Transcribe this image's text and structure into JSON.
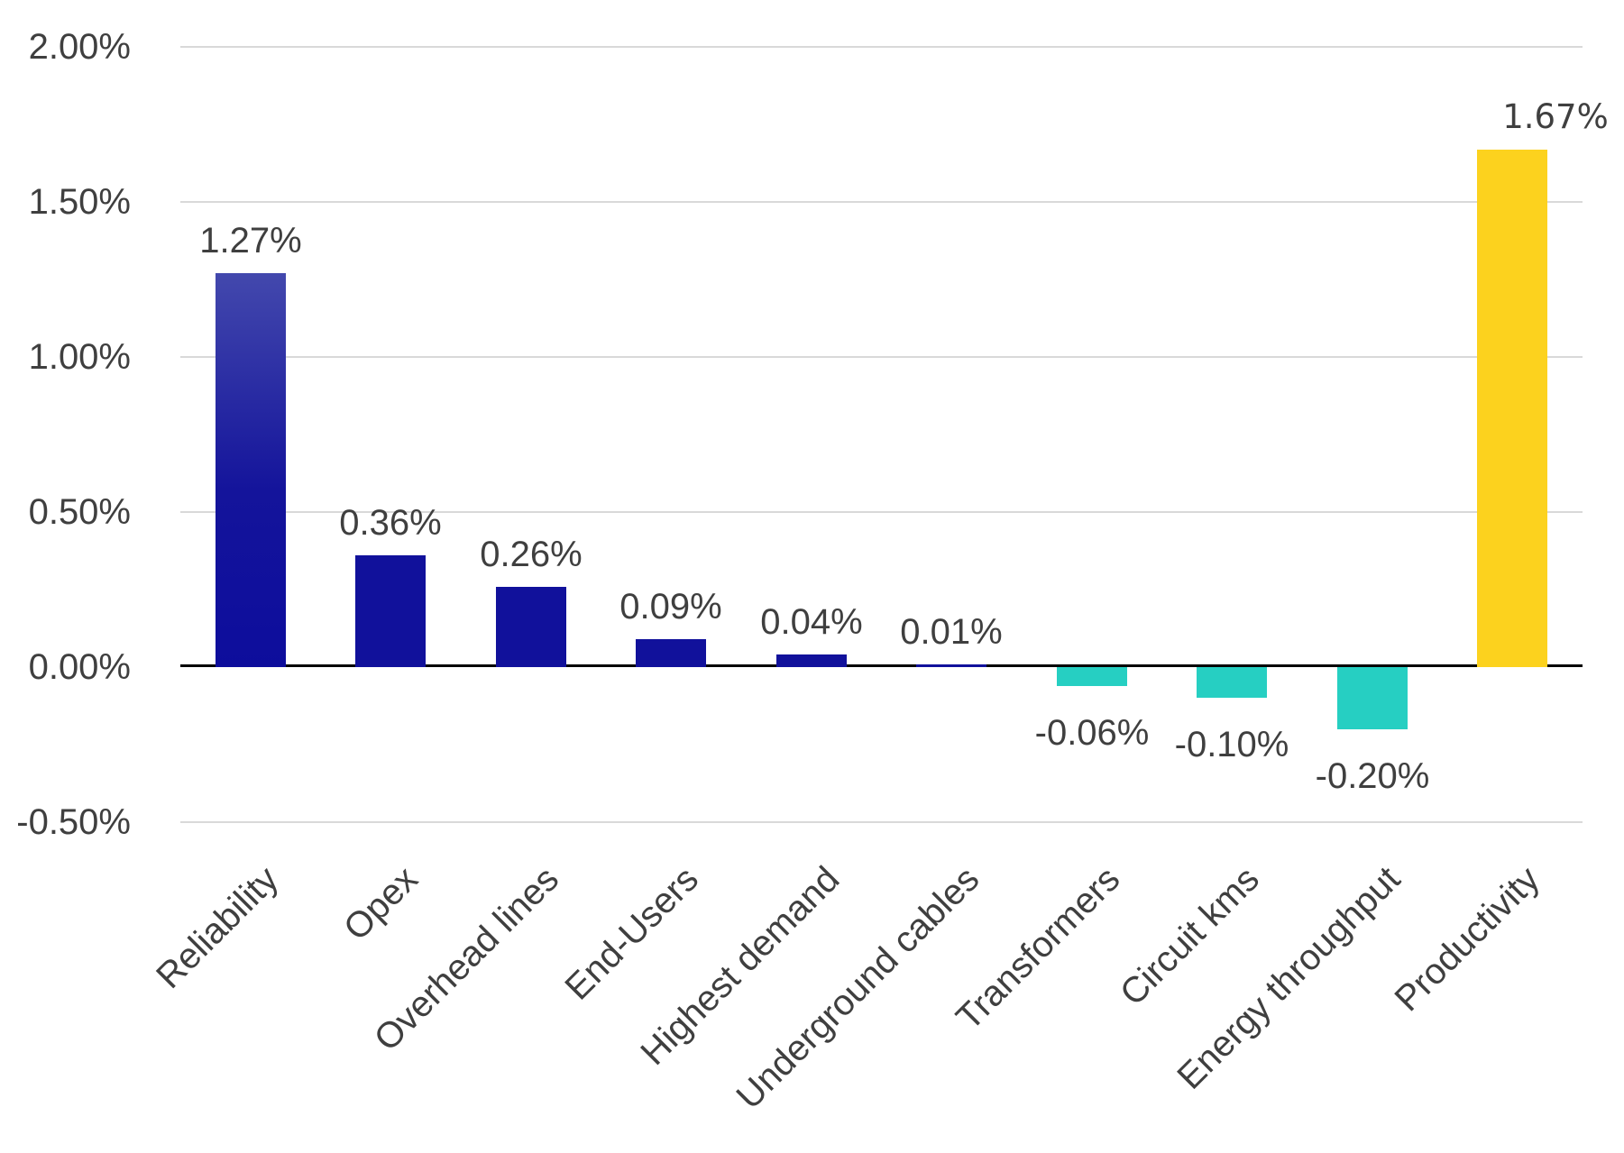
{
  "chart_data": {
    "type": "bar",
    "title": "",
    "xlabel": "",
    "ylabel": "",
    "categories": [
      "Reliability",
      "Opex",
      "Overhead lines",
      "End-Users",
      "Highest demand",
      "Underground cables",
      "Transformers",
      "Circuit kms",
      "Energy throughput",
      "Productivity"
    ],
    "values": [
      1.27,
      0.36,
      0.26,
      0.09,
      0.04,
      0.01,
      -0.06,
      -0.1,
      -0.2,
      1.67
    ],
    "value_labels": [
      "1.27%",
      "0.36%",
      "0.26%",
      "0.09%",
      "0.04%",
      "0.01%",
      "-0.06%",
      "-0.10%",
      "-0.20%",
      "1.67%"
    ],
    "bar_styles": [
      "blue-gradient",
      "blue",
      "blue",
      "blue",
      "blue",
      "blue",
      "teal",
      "teal",
      "teal",
      "yellow"
    ],
    "label_x_offsets": [
      0,
      0,
      0,
      0,
      0,
      0,
      0,
      0,
      0,
      48
    ],
    "label_alt_font": [
      false,
      false,
      false,
      false,
      false,
      false,
      false,
      false,
      false,
      true
    ],
    "y_tick_labels": [
      "2.00%",
      "1.50%",
      "1.00%",
      "0.50%",
      "0.00%",
      "-0.50%"
    ],
    "y_tick_values": [
      2.0,
      1.5,
      1.0,
      0.5,
      0.0,
      -0.5
    ],
    "ylim": [
      -0.5,
      2.0
    ],
    "grid": true,
    "legend_position": "none",
    "colors": {
      "bar_blue": "#11119B",
      "bar_blue_gradient_top": "#4348AD",
      "bar_blue_gradient_mid": "#14149B",
      "bar_blue_gradient_bottom": "#0D0D9C",
      "bar_teal": "#26CFC2",
      "bar_yellow": "#FCD21E",
      "axis_line": "#000000",
      "gridline": "#D9D9D9",
      "text": "#3F3F3F"
    }
  }
}
